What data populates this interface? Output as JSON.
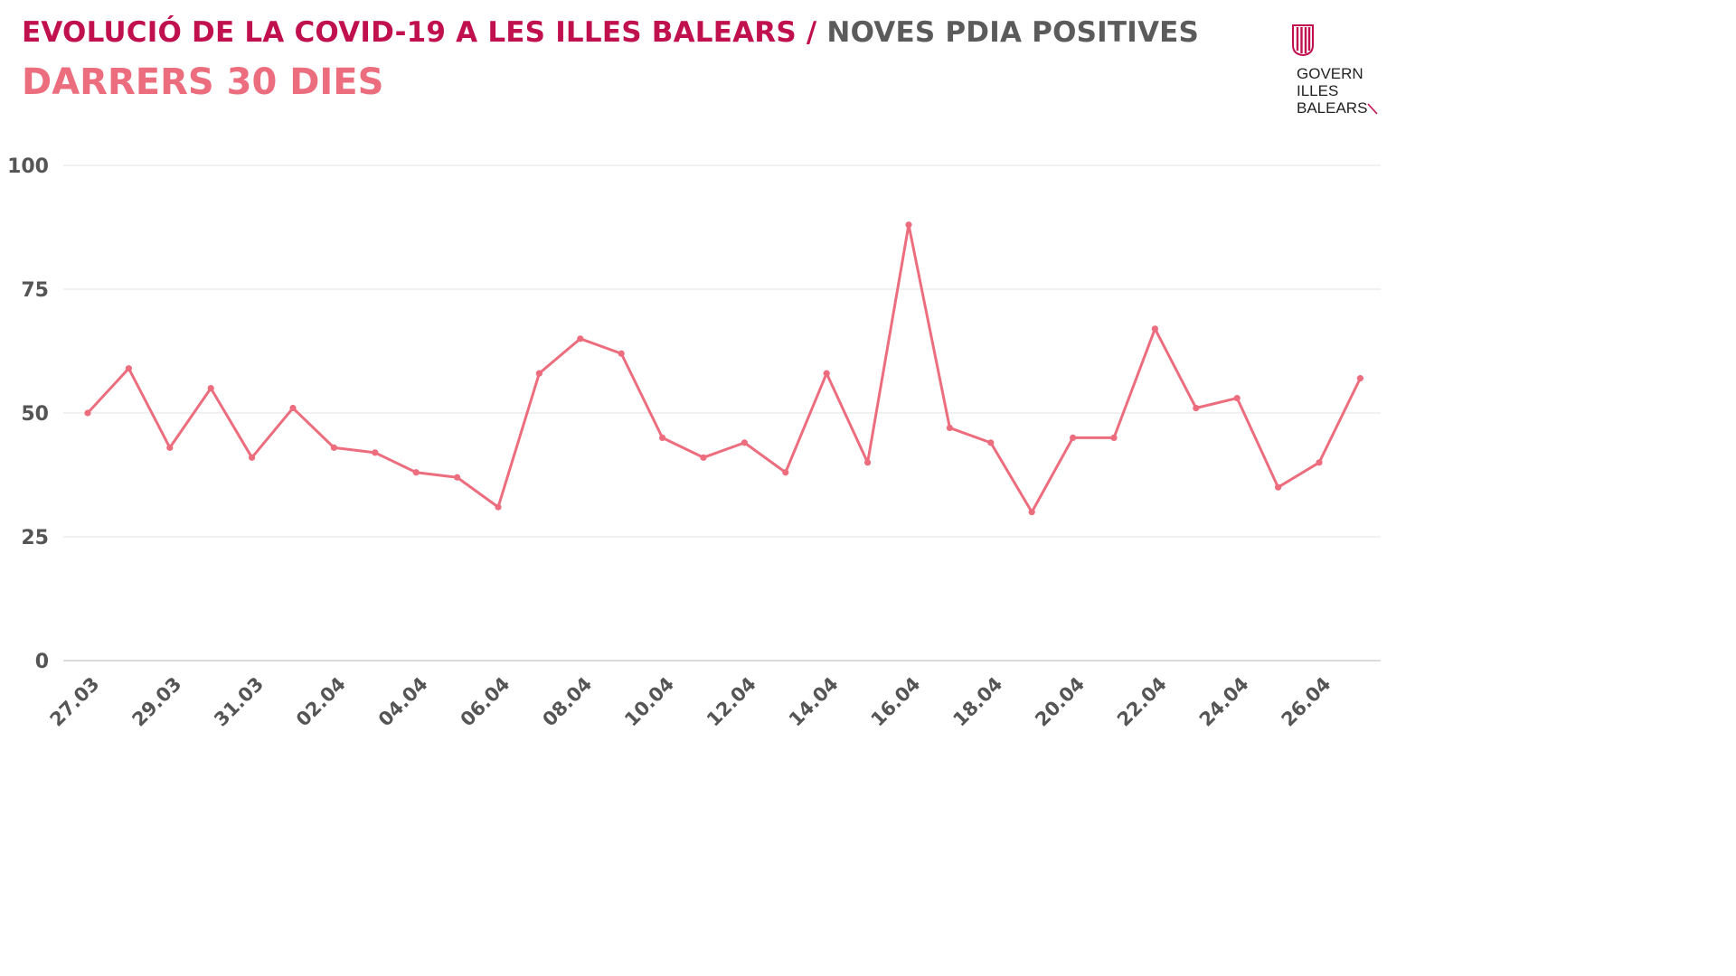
{
  "header": {
    "title_main": "EVOLUCIÓ DE LA COVID-19 A LES ILLES BALEARS",
    "title_separator": "/",
    "title_secondary": "NOVES PDIA POSITIVES",
    "subtitle": "DARRERS 30 DIES"
  },
  "logo": {
    "line1": "GOVERN",
    "line2": "ILLES",
    "line3": "BALEARS",
    "icon": "balearic-government-emblem-icon"
  },
  "colors": {
    "title": "#c0104e",
    "secondary": "#5b5b5b",
    "line": "#ec6d7e",
    "grid": "#e3e3e3",
    "axis": "#cfcfcf"
  },
  "chart_data": {
    "type": "line",
    "title": "",
    "xlabel": "",
    "ylabel": "",
    "ylim": [
      0,
      100
    ],
    "yticks": [
      0,
      25,
      50,
      75,
      100
    ],
    "grid": true,
    "x": [
      "27.03",
      "28.03",
      "29.03",
      "30.03",
      "31.03",
      "01.04",
      "02.04",
      "03.04",
      "04.04",
      "05.04",
      "06.04",
      "07.04",
      "08.04",
      "09.04",
      "10.04",
      "11.04",
      "12.04",
      "13.04",
      "14.04",
      "15.04",
      "16.04",
      "17.04",
      "18.04",
      "19.04",
      "20.04",
      "21.04",
      "22.04",
      "23.04",
      "24.04",
      "25.04",
      "26.04",
      "27.04"
    ],
    "x_tick_labels": [
      "27.03",
      "29.03",
      "31.03",
      "02.04",
      "04.04",
      "06.04",
      "08.04",
      "10.04",
      "12.04",
      "14.04",
      "16.04",
      "18.04",
      "20.04",
      "22.04",
      "24.04",
      "26.04"
    ],
    "series": [
      {
        "values": [
          50,
          59,
          43,
          55,
          41,
          51,
          43,
          42,
          38,
          37,
          31,
          58,
          65,
          62,
          45,
          41,
          44,
          38,
          58,
          40,
          88,
          47,
          44,
          30,
          45,
          45,
          67,
          51,
          53,
          35,
          40,
          57
        ]
      }
    ]
  }
}
